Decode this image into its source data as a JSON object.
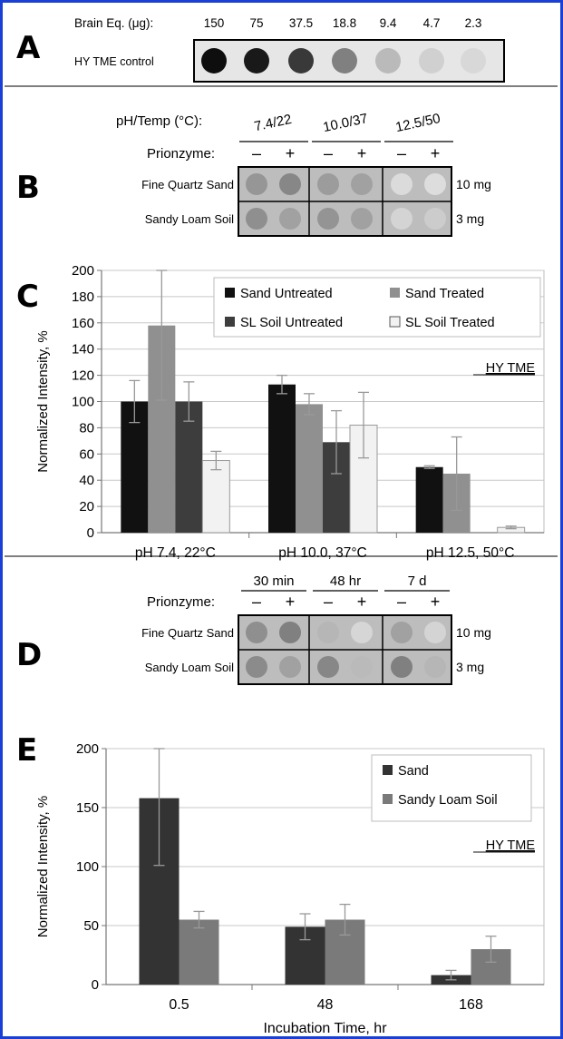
{
  "panels": {
    "a": {
      "letter": "A",
      "header": "Brain Eq. (μg):",
      "row_label": "HY TME control",
      "amounts": [
        "150",
        "75",
        "37.5",
        "18.8",
        "9.4",
        "4.7",
        "2.3"
      ],
      "dot_intensity": [
        0.98,
        0.93,
        0.78,
        0.45,
        0.18,
        0.08,
        0.04
      ]
    },
    "b": {
      "letter": "B",
      "header_left": "pH/Temp (°C):",
      "conditions": [
        "7.4/22",
        "10.0/37",
        "12.5/50"
      ],
      "prionzyme_label": "Prionzyme:",
      "minus": "–",
      "plus": "+",
      "rows": [
        {
          "label": "Fine Quartz Sand",
          "mass": "10 mg",
          "dots": [
            0.35,
            0.42,
            0.32,
            0.3,
            0.03,
            0.02
          ]
        },
        {
          "label": "Sandy Loam Soil",
          "mass": "3 mg",
          "dots": [
            0.38,
            0.3,
            0.36,
            0.3,
            0.06,
            0.1
          ]
        }
      ]
    },
    "d": {
      "letter": "D",
      "times": [
        "30 min",
        "48 hr",
        "7 d"
      ],
      "prionzyme_label": "Prionzyme:",
      "minus": "–",
      "plus": "+",
      "rows": [
        {
          "label": "Fine Quartz Sand",
          "mass": "10 mg",
          "dots": [
            0.38,
            0.45,
            0.2,
            0.05,
            0.3,
            0.06
          ]
        },
        {
          "label": "Sandy Loam Soil",
          "mass": "3 mg",
          "dots": [
            0.4,
            0.3,
            0.42,
            0.18,
            0.45,
            0.2
          ]
        }
      ]
    }
  },
  "chart_data": [
    {
      "panel": "C",
      "type": "bar",
      "title": "",
      "xlabel": "",
      "ylabel": "Normalized Intensity, %",
      "ylim": [
        0,
        200
      ],
      "yticks": [
        0,
        20,
        40,
        60,
        80,
        100,
        120,
        140,
        160,
        180,
        200
      ],
      "grid": true,
      "legend_position": "top-right",
      "annotation": "HY TME",
      "categories": [
        "pH 7.4, 22°C",
        "pH 10.0, 37°C",
        "pH 12.5, 50°C"
      ],
      "series": [
        {
          "name": "Sand Untreated",
          "color": "#111111",
          "values": [
            100,
            113,
            50
          ],
          "errors": [
            16,
            7,
            1
          ]
        },
        {
          "name": "Sand Treated",
          "color": "#909090",
          "values": [
            158,
            98,
            45
          ],
          "errors": [
            57,
            8,
            28
          ]
        },
        {
          "name": "SL Soil Untreated",
          "color": "#3d3d3d",
          "values": [
            100,
            69,
            null
          ],
          "errors": [
            15,
            24,
            null
          ]
        },
        {
          "name": "SL Soil Treated",
          "color": "#f2f2f2",
          "values": [
            55,
            82,
            4
          ],
          "errors": [
            7,
            25,
            1
          ]
        }
      ]
    },
    {
      "panel": "E",
      "type": "bar",
      "title": "",
      "xlabel": "Incubation Time, hr",
      "ylabel": "Normalized Intensity, %",
      "ylim": [
        0,
        200
      ],
      "yticks": [
        0,
        50,
        100,
        150,
        200
      ],
      "grid": true,
      "legend_position": "top-right",
      "annotation": "HY TME",
      "categories": [
        "0.5",
        "48",
        "168"
      ],
      "series": [
        {
          "name": "Sand",
          "color": "#333333",
          "values": [
            158,
            49,
            8
          ],
          "errors": [
            57,
            11,
            4
          ]
        },
        {
          "name": "Sandy Loam Soil",
          "color": "#7a7a7a",
          "values": [
            55,
            55,
            30
          ],
          "errors": [
            7,
            13,
            11
          ]
        }
      ]
    }
  ],
  "colors": {
    "frame_border": "#1a3fd6",
    "rule": "#555555",
    "blot_bg": "#bdbdbd",
    "grid": "#c8c8c8"
  }
}
